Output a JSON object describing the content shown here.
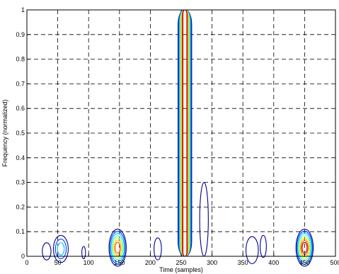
{
  "chart_data": {
    "type": "contour",
    "title": "",
    "xlabel": "Time (samples)",
    "ylabel": "Frequency (normalized)",
    "xlim": [
      0,
      500
    ],
    "ylim": [
      0,
      1
    ],
    "x_ticks": [
      0,
      50,
      100,
      150,
      200,
      250,
      300,
      350,
      400,
      450,
      500
    ],
    "y_ticks": [
      0,
      0.1,
      0.2,
      0.3,
      0.4,
      0.5,
      0.6,
      0.7,
      0.8,
      0.9,
      1
    ],
    "grid": "dashed",
    "levels": [
      {
        "level": 1,
        "color": "#00008f"
      },
      {
        "level": 2,
        "color": "#0040ff"
      },
      {
        "level": 3,
        "color": "#00c0ff"
      },
      {
        "level": 4,
        "color": "#40ffbf"
      },
      {
        "level": 5,
        "color": "#bfff40"
      },
      {
        "level": 6,
        "color": "#ffc000"
      },
      {
        "level": 7,
        "color": "#ff4000"
      },
      {
        "level": 8,
        "color": "#bf0000"
      }
    ],
    "components": [
      {
        "name": "low-blob-55",
        "time": 55,
        "freq": 0.03,
        "time_halfwidth": 12,
        "freq_halfwidth": 0.055,
        "max_level": 3
      },
      {
        "name": "low-blob-30",
        "time": 32,
        "freq": 0.02,
        "time_halfwidth": 7,
        "freq_halfwidth": 0.035,
        "max_level": 1
      },
      {
        "name": "low-blob-90",
        "time": 92,
        "freq": 0.015,
        "time_halfwidth": 3,
        "freq_halfwidth": 0.025,
        "max_level": 1
      },
      {
        "name": "atom-145",
        "time": 147,
        "freq": 0.035,
        "time_halfwidth": 14,
        "freq_halfwidth": 0.075,
        "max_level": 7
      },
      {
        "name": "low-blob-210",
        "time": 212,
        "freq": 0.03,
        "time_halfwidth": 6,
        "freq_halfwidth": 0.045,
        "max_level": 1
      },
      {
        "name": "low-blob-360",
        "time": 365,
        "freq": 0.025,
        "time_halfwidth": 10,
        "freq_halfwidth": 0.055,
        "max_level": 1
      },
      {
        "name": "low-blob-380",
        "time": 383,
        "freq": 0.04,
        "time_halfwidth": 5,
        "freq_halfwidth": 0.045,
        "max_level": 1
      },
      {
        "name": "atom-450",
        "time": 450,
        "freq": 0.035,
        "time_halfwidth": 14,
        "freq_halfwidth": 0.075,
        "max_level": 8
      },
      {
        "name": "right-tail-288",
        "time": 287,
        "freq": 0.15,
        "time_halfwidth": 7,
        "freq_halfwidth": 0.15,
        "max_level": 1
      },
      {
        "name": "impulse-256",
        "time": 256,
        "freq_from": 0,
        "freq_to": 1,
        "time_halfwidth": 11,
        "max_level": 8
      }
    ]
  }
}
